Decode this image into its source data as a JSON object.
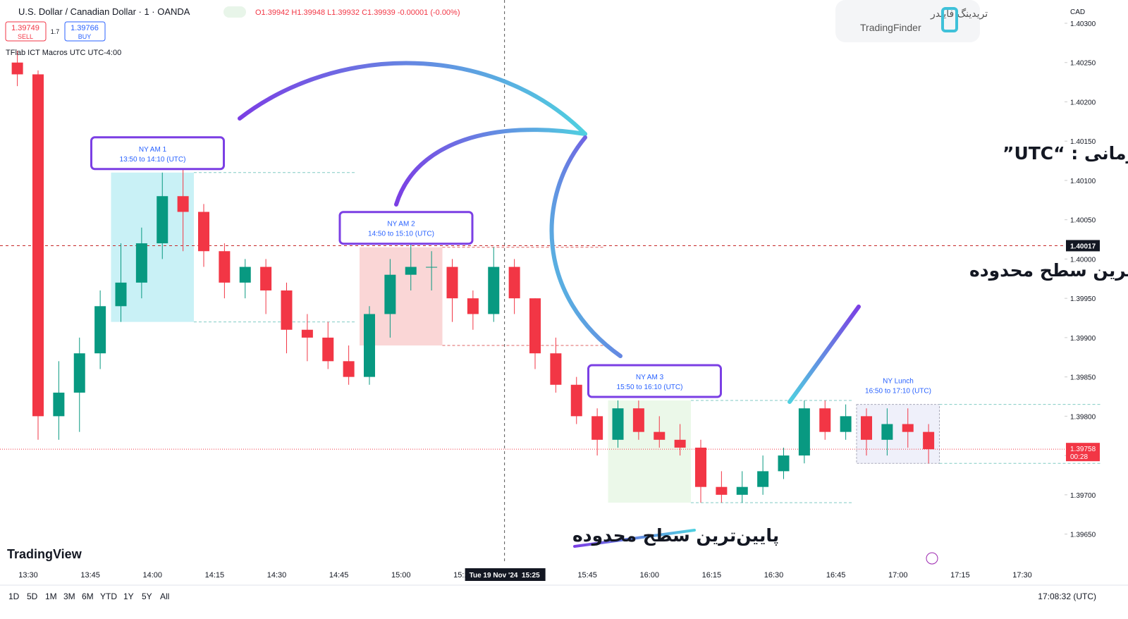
{
  "header": {
    "symbol": "U.S. Dollar / Canadian Dollar · 1 · OANDA",
    "ohlc": "O1.39942 H1.39948 L1.39932 C1.39939 -0.00001 (-0.00%)",
    "sell_price": "1.39749",
    "sell": "SELL",
    "spread": "1.7",
    "buy_price": "1.39766",
    "buy": "BUY",
    "indicator": "TFlab ICT Macros UTC UTC-4:00",
    "currency": "CAD"
  },
  "logo": {
    "fa": "تریدینگ فایندر",
    "en": "TradingFinder"
  },
  "watermark": "TradingView",
  "annotations": {
    "timezone": "نمایش محدوده زمانی و مود منطقه زمانی : “UTC”",
    "highest": "بالاترین سطح محدوده",
    "lowest": "پایین‌ترین سطح محدوده"
  },
  "toolbar": {
    "ranges": [
      "1D",
      "5D",
      "1M",
      "3M",
      "6M",
      "YTD",
      "1Y",
      "5Y",
      "All"
    ],
    "clock": "17:08:32 (UTC)"
  },
  "chart_data": {
    "type": "candlestick",
    "x": [
      "13:25",
      "13:30",
      "13:35",
      "13:40",
      "13:45",
      "13:50",
      "13:55",
      "14:00",
      "14:05",
      "14:10",
      "14:15",
      "14:20",
      "14:25",
      "14:30",
      "14:35",
      "14:40",
      "14:45",
      "14:50",
      "14:55",
      "15:00",
      "15:05",
      "15:10",
      "15:15",
      "15:20",
      "15:25",
      "15:30",
      "15:35",
      "15:40",
      "15:45",
      "15:50",
      "15:55",
      "16:00",
      "16:05",
      "16:10",
      "16:15",
      "16:20",
      "16:25",
      "16:30",
      "16:35",
      "16:40",
      "16:45",
      "16:50",
      "16:55",
      "17:00",
      "17:05"
    ],
    "open": [
      1.4025,
      1.40235,
      1.398,
      1.3983,
      1.3988,
      1.3994,
      1.3997,
      1.4002,
      1.4008,
      1.4006,
      1.4001,
      1.3997,
      1.3999,
      1.3996,
      1.3991,
      1.399,
      1.3987,
      1.3985,
      1.3993,
      1.3998,
      1.3999,
      1.3999,
      1.3995,
      1.3993,
      1.3999,
      1.3995,
      1.3988,
      1.3984,
      1.398,
      1.3977,
      1.3981,
      1.3978,
      1.3977,
      1.3976,
      1.3971,
      1.397,
      1.3971,
      1.3973,
      1.3975,
      1.3981,
      1.3978,
      1.398,
      1.3977,
      1.3979,
      1.3978
    ],
    "high": [
      1.40265,
      1.4024,
      1.3987,
      1.399,
      1.3996,
      1.4002,
      1.4004,
      1.4011,
      1.4012,
      1.4007,
      1.4002,
      1.4,
      1.4,
      1.3997,
      1.3993,
      1.3992,
      1.3989,
      1.3994,
      1.4,
      1.4002,
      1.4001,
      1.4,
      1.3996,
      1.40015,
      1.4,
      1.3995,
      1.399,
      1.3985,
      1.3981,
      1.3982,
      1.3982,
      1.398,
      1.3979,
      1.3977,
      1.3973,
      1.3973,
      1.3975,
      1.3976,
      1.3982,
      1.3982,
      1.39815,
      1.3981,
      1.3981,
      1.3981,
      1.3979
    ],
    "low": [
      1.4022,
      1.3977,
      1.3977,
      1.3978,
      1.3986,
      1.3992,
      1.3995,
      1.4,
      1.4001,
      1.3999,
      1.3995,
      1.3995,
      1.3993,
      1.3988,
      1.3987,
      1.3986,
      1.3984,
      1.3984,
      1.399,
      1.3996,
      1.3996,
      1.3992,
      1.3991,
      1.3992,
      1.3993,
      1.3986,
      1.3983,
      1.3979,
      1.3975,
      1.3976,
      1.3977,
      1.3976,
      1.3975,
      1.3969,
      1.3969,
      1.3969,
      1.397,
      1.3972,
      1.3974,
      1.3977,
      1.3977,
      1.3975,
      1.3975,
      1.3976,
      1.3974
    ],
    "close": [
      1.40235,
      1.398,
      1.3983,
      1.3988,
      1.3994,
      1.3997,
      1.4002,
      1.4008,
      1.4006,
      1.4001,
      1.3997,
      1.3999,
      1.3996,
      1.3991,
      1.399,
      1.3987,
      1.3985,
      1.3993,
      1.3998,
      1.3999,
      1.3999,
      1.3995,
      1.3993,
      1.3999,
      1.3995,
      1.3988,
      1.3984,
      1.398,
      1.3977,
      1.3981,
      1.3978,
      1.3977,
      1.3976,
      1.3971,
      1.397,
      1.3971,
      1.3973,
      1.3975,
      1.3981,
      1.3978,
      1.398,
      1.3977,
      1.3979,
      1.3978,
      1.39758
    ],
    "up_color": "#089981",
    "down_color": "#f23645",
    "ylim": [
      1.3962,
      1.403
    ],
    "yticks": [
      {
        "value": 1.403,
        "label": "1.40300"
      },
      {
        "value": 1.4025,
        "label": "1.40250"
      },
      {
        "value": 1.402,
        "label": "1.40200"
      },
      {
        "value": 1.4015,
        "label": "1.40150"
      },
      {
        "value": 1.401,
        "label": "1.40100"
      },
      {
        "value": 1.4005,
        "label": "1.40050"
      },
      {
        "value": 1.4,
        "label": "1.40000"
      },
      {
        "value": 1.3995,
        "label": "1.39950"
      },
      {
        "value": 1.399,
        "label": "1.39900"
      },
      {
        "value": 1.3985,
        "label": "1.39850"
      },
      {
        "value": 1.398,
        "label": "1.39800"
      },
      {
        "value": 1.3975,
        "label": "1.39750"
      },
      {
        "value": 1.397,
        "label": "1.39700"
      },
      {
        "value": 1.3965,
        "label": "1.39650"
      }
    ],
    "xticks": [
      "13:30",
      "13:45",
      "14:00",
      "14:15",
      "14:30",
      "14:45",
      "15:00",
      "15:15",
      "15:30",
      "15:45",
      "16:00",
      "16:15",
      "16:30",
      "16:45",
      "17:00",
      "17:15",
      "17:30"
    ],
    "crosshair": {
      "price": {
        "value": 1.40017,
        "label": "1.40017"
      },
      "time": "15:25",
      "time_label": "Tue 19 Nov '24  15:25"
    },
    "last_price": {
      "value": 1.39758,
      "label": "1.39758"
    },
    "countdown": "00:28",
    "sessions": [
      {
        "name": "NY AM 1",
        "range": "13:50 to 14:10 (UTC)",
        "start": "13:50",
        "end": "14:10",
        "high": 1.4011,
        "low": 1.3992,
        "color": "#b2ebf2"
      },
      {
        "name": "NY AM 2",
        "range": "14:50 to 15:10 (UTC)",
        "start": "14:50",
        "end": "15:10",
        "high": 1.40015,
        "low": 1.3989,
        "color": "#f8c4c4"
      },
      {
        "name": "NY AM 3",
        "range": "15:50 to 16:10 (UTC)",
        "start": "15:50",
        "end": "16:10",
        "high": 1.3982,
        "low": 1.3969,
        "color": "#e3f5df"
      },
      {
        "name": "NY Lunch",
        "range": "16:50 to 17:10 (UTC)",
        "start": "16:50",
        "end": "17:10",
        "high": 1.39815,
        "low": 1.3974,
        "color": "#e8eaf8"
      }
    ]
  }
}
